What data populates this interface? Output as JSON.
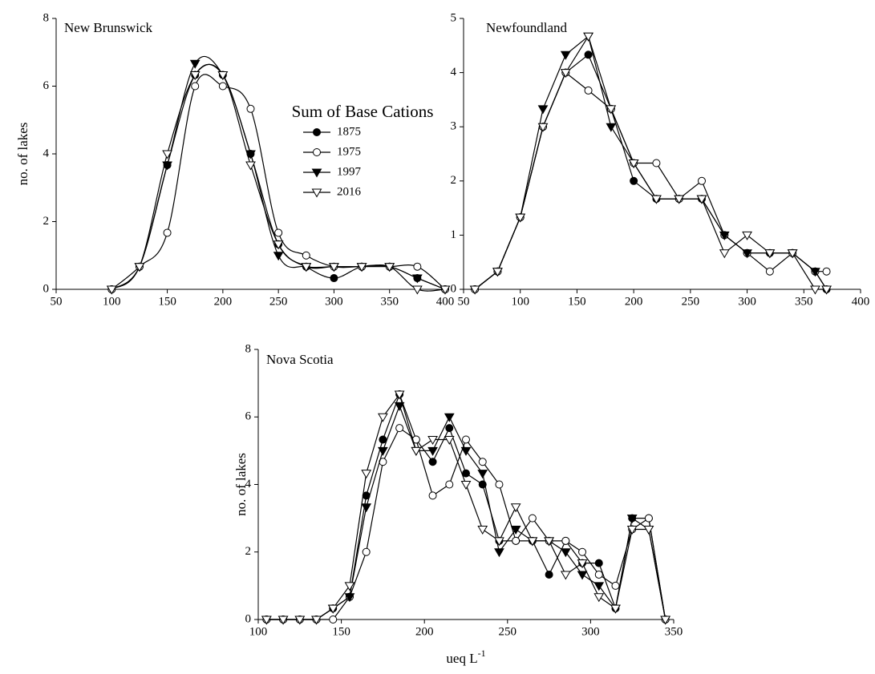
{
  "chart_data": [
    {
      "type": "line",
      "title": "New Brunswick",
      "annotation": "Sum of Base Cations",
      "ylabel": "no. of  lakes",
      "smooth": true,
      "legend": "center right",
      "x": [
        100,
        125,
        150,
        175,
        200,
        225,
        250,
        275,
        300,
        325,
        350,
        375,
        400
      ],
      "xlim": [
        50,
        400
      ],
      "xticks": [
        50,
        100,
        150,
        200,
        250,
        300,
        350,
        400
      ],
      "ylim": [
        0,
        8
      ],
      "yticks": [
        0,
        2,
        4,
        6,
        8
      ],
      "series": [
        {
          "name": "1875",
          "color": "#000000",
          "marker": "circle",
          "marker_fill": "#000000",
          "values": [
            0,
            0.67,
            3.67,
            6.33,
            6.33,
            4,
            1.33,
            0.67,
            0.33,
            0.67,
            0.67,
            0.33,
            0
          ]
        },
        {
          "name": "1975",
          "color": "#000000",
          "marker": "circle",
          "marker_fill": "#ffffff",
          "values": [
            0,
            0.67,
            1.67,
            6,
            6,
            5.33,
            1.67,
            1,
            0.67,
            0.67,
            0.67,
            0.67,
            0
          ]
        },
        {
          "name": "1997",
          "color": "#000000",
          "marker": "triangle-down",
          "marker_fill": "#000000",
          "values": [
            0,
            0.67,
            3.67,
            6.67,
            6.33,
            4,
            1,
            0.67,
            0.67,
            0.67,
            0.67,
            0.33,
            0
          ]
        },
        {
          "name": "2016",
          "color": "#000000",
          "marker": "triangle-down",
          "marker_fill": "#ffffff",
          "values": [
            0,
            0.67,
            4,
            6.33,
            6.33,
            3.67,
            1.33,
            0.67,
            0.67,
            0.67,
            0.67,
            0,
            0
          ]
        }
      ]
    },
    {
      "type": "line",
      "title": "Newfoundland",
      "smooth": false,
      "legend": "none",
      "x": [
        60,
        80,
        100,
        120,
        140,
        160,
        180,
        200,
        220,
        240,
        260,
        280,
        300,
        320,
        340,
        360,
        370
      ],
      "xlim": [
        50,
        400
      ],
      "xticks": [
        50,
        100,
        150,
        200,
        250,
        300,
        350,
        400
      ],
      "ylim": [
        0,
        5
      ],
      "yticks": [
        0,
        1,
        2,
        3,
        4,
        5
      ],
      "series": [
        {
          "name": "1875",
          "color": "#000000",
          "marker": "circle",
          "marker_fill": "#000000",
          "values": [
            0,
            0.33,
            1.33,
            3,
            4,
            4.33,
            3.33,
            2,
            1.67,
            1.67,
            1.67,
            1,
            0.67,
            0.67,
            0.67,
            0.33,
            0
          ]
        },
        {
          "name": "1975",
          "color": "#000000",
          "marker": "circle",
          "marker_fill": "#ffffff",
          "values": [
            0,
            0.33,
            1.33,
            3,
            4,
            3.67,
            3.33,
            2.33,
            2.33,
            1.67,
            2,
            1,
            0.67,
            0.33,
            0.67,
            0.33,
            0.33
          ]
        },
        {
          "name": "1997",
          "color": "#000000",
          "marker": "triangle-down",
          "marker_fill": "#000000",
          "values": [
            0,
            0.33,
            1.33,
            3.33,
            4.33,
            4.67,
            3,
            2.33,
            1.67,
            1.67,
            1.67,
            1,
            0.67,
            0.67,
            0.67,
            0.33,
            0
          ]
        },
        {
          "name": "2016",
          "color": "#000000",
          "marker": "triangle-down",
          "marker_fill": "#ffffff",
          "values": [
            0,
            0.33,
            1.33,
            3,
            4,
            4.67,
            3.33,
            2.33,
            1.67,
            1.67,
            1.67,
            0.67,
            1,
            0.67,
            0.67,
            0,
            0
          ]
        }
      ]
    },
    {
      "type": "line",
      "title": "Nova Scotia",
      "ylabel": "no. of  lakes",
      "xlabel": "ueq L",
      "xlabel_exponent": "-1",
      "smooth": false,
      "legend": "none",
      "x": [
        105,
        115,
        125,
        135,
        145,
        155,
        165,
        175,
        185,
        195,
        205,
        215,
        225,
        235,
        245,
        255,
        265,
        275,
        285,
        295,
        305,
        315,
        325,
        335,
        345
      ],
      "xlim": [
        100,
        350
      ],
      "xticks": [
        100,
        150,
        200,
        250,
        300,
        350
      ],
      "ylim": [
        0,
        8
      ],
      "yticks": [
        0,
        2,
        4,
        6,
        8
      ],
      "series": [
        {
          "name": "1875",
          "color": "#000000",
          "marker": "circle",
          "marker_fill": "#000000",
          "values": [
            0,
            0,
            0,
            0,
            0.33,
            0.67,
            3.67,
            5.33,
            6.67,
            5.33,
            4.67,
            5.67,
            4.33,
            4,
            2.33,
            2.33,
            2.33,
            1.33,
            2.33,
            1.67,
            1.67,
            0.33,
            3,
            3,
            0
          ]
        },
        {
          "name": "1975",
          "color": "#000000",
          "marker": "circle",
          "marker_fill": "#ffffff",
          "values": [
            0,
            0,
            0,
            0,
            0,
            0.67,
            2,
            4.67,
            5.67,
            5.33,
            3.67,
            4,
            5.33,
            4.67,
            4,
            2.33,
            3,
            2.33,
            2.33,
            2,
            1.33,
            1,
            2.67,
            3,
            0
          ]
        },
        {
          "name": "1997",
          "color": "#000000",
          "marker": "triangle-down",
          "marker_fill": "#000000",
          "values": [
            0,
            0,
            0,
            0,
            0.33,
            0.67,
            3.33,
            5,
            6.33,
            5,
            5,
            6,
            5,
            4.33,
            2,
            2.67,
            2.33,
            2.33,
            2,
            1.33,
            1,
            0.33,
            3,
            2.67,
            0
          ]
        },
        {
          "name": "2016",
          "color": "#000000",
          "marker": "triangle-down",
          "marker_fill": "#ffffff",
          "values": [
            0,
            0,
            0,
            0,
            0.33,
            1,
            4.33,
            6,
            6.67,
            5,
            5.33,
            5.33,
            4,
            2.67,
            2.33,
            3.33,
            2.33,
            2.33,
            1.33,
            1.67,
            0.67,
            0.33,
            2.67,
            2.67,
            0
          ]
        }
      ]
    }
  ]
}
